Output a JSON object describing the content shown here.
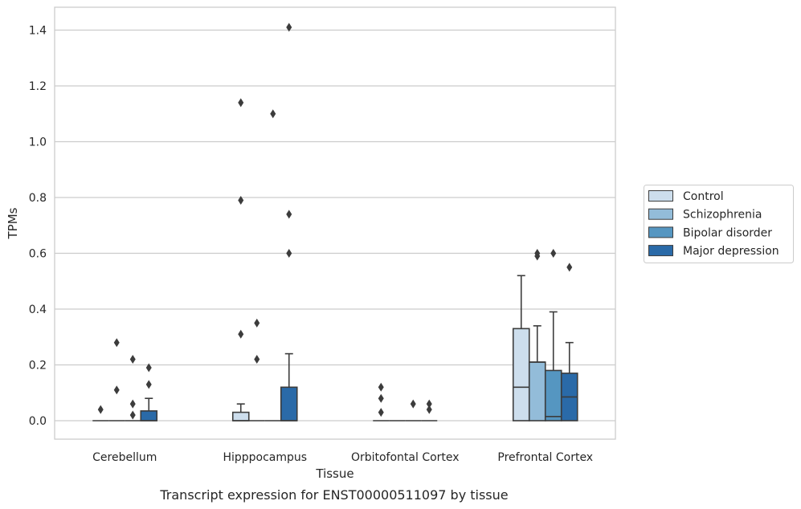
{
  "chart_data": {
    "type": "box",
    "caption": "Transcript expression for ENST00000511097 by tissue",
    "xlabel": "Tissue",
    "ylabel": "TPMs",
    "ylim": [
      -0.07,
      1.48
    ],
    "yticks": [
      0.0,
      0.2,
      0.4,
      0.6,
      0.8,
      1.0,
      1.2,
      1.4
    ],
    "ytick_labels": [
      "0.0",
      "0.2",
      "0.4",
      "0.6",
      "0.8",
      "1.0",
      "1.2",
      "1.4"
    ],
    "grid": "horizontal",
    "legend_position": "right",
    "categories": [
      "Cerebellum",
      "Hipppocampus",
      "Orbitofontal Cortex",
      "Prefrontal Cortex"
    ],
    "series": [
      {
        "name": "Control",
        "color": "#cddeed",
        "boxes": [
          {
            "q1": 0,
            "median": 0,
            "q3": 0,
            "whisker_low": 0,
            "whisker_high": 0,
            "outliers": [
              0.04
            ]
          },
          {
            "q1": 0,
            "median": 0,
            "q3": 0.03,
            "whisker_low": 0,
            "whisker_high": 0.06,
            "outliers": [
              0.31,
              0.79,
              1.14
            ]
          },
          {
            "q1": 0,
            "median": 0,
            "q3": 0,
            "whisker_low": 0,
            "whisker_high": 0,
            "outliers": [
              0.03,
              0.08,
              0.12
            ]
          },
          {
            "q1": 0,
            "median": 0.12,
            "q3": 0.33,
            "whisker_low": 0,
            "whisker_high": 0.52,
            "outliers": []
          }
        ]
      },
      {
        "name": "Schizophrenia",
        "color": "#93bcd9",
        "boxes": [
          {
            "q1": 0,
            "median": 0,
            "q3": 0,
            "whisker_low": 0,
            "whisker_high": 0,
            "outliers": [
              0.11,
              0.28
            ]
          },
          {
            "q1": 0,
            "median": 0,
            "q3": 0,
            "whisker_low": 0,
            "whisker_high": 0,
            "outliers": [
              0.22,
              0.35
            ]
          },
          {
            "q1": 0,
            "median": 0,
            "q3": 0,
            "whisker_low": 0,
            "whisker_high": 0,
            "outliers": []
          },
          {
            "q1": 0,
            "median": 0.21,
            "q3": 0.21,
            "whisker_low": 0,
            "whisker_high": 0.34,
            "outliers": [
              0.59,
              0.6
            ]
          }
        ]
      },
      {
        "name": "Bipolar disorder",
        "color": "#5596c1",
        "boxes": [
          {
            "q1": 0,
            "median": 0,
            "q3": 0,
            "whisker_low": 0,
            "whisker_high": 0,
            "outliers": [
              0.02,
              0.06,
              0.22
            ]
          },
          {
            "q1": 0,
            "median": 0,
            "q3": 0,
            "whisker_low": 0,
            "whisker_high": 0,
            "outliers": [
              1.1
            ]
          },
          {
            "q1": 0,
            "median": 0,
            "q3": 0,
            "whisker_low": 0,
            "whisker_high": 0,
            "outliers": [
              0.06
            ]
          },
          {
            "q1": 0,
            "median": 0.015,
            "q3": 0.18,
            "whisker_low": 0,
            "whisker_high": 0.39,
            "outliers": [
              0.6
            ]
          }
        ]
      },
      {
        "name": "Major depression",
        "color": "#2a6aa8",
        "boxes": [
          {
            "q1": 0,
            "median": 0,
            "q3": 0.035,
            "whisker_low": 0,
            "whisker_high": 0.08,
            "outliers": [
              0.13,
              0.19
            ]
          },
          {
            "q1": 0,
            "median": 0,
            "q3": 0.12,
            "whisker_low": 0,
            "whisker_high": 0.24,
            "outliers": [
              0.6,
              0.74,
              1.41
            ]
          },
          {
            "q1": 0,
            "median": 0,
            "q3": 0,
            "whisker_low": 0,
            "whisker_high": 0,
            "outliers": [
              0.04,
              0.06
            ]
          },
          {
            "q1": 0,
            "median": 0.085,
            "q3": 0.17,
            "whisker_low": 0,
            "whisker_high": 0.28,
            "outliers": [
              0.55
            ]
          }
        ]
      }
    ]
  }
}
